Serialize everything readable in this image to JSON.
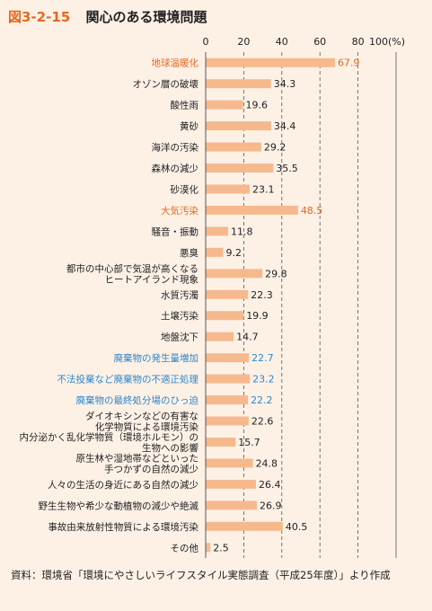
{
  "figure": {
    "number": "図3-2-15",
    "title": "関心のある環境問題"
  },
  "colors": {
    "bar": "#f6b98e",
    "accent_orange": "#e8671d",
    "accent_blue": "#2f86c9",
    "text": "#222222",
    "grid": "#555555",
    "background": "#fdf1e6"
  },
  "chart_data": {
    "type": "bar",
    "orientation": "horizontal",
    "title": "関心のある環境問題",
    "xlim": [
      0,
      100
    ],
    "x_ticks": [
      "0",
      "20",
      "40",
      "60",
      "80",
      "100(%)"
    ],
    "x_tick_values": [
      0,
      20,
      40,
      60,
      80,
      100
    ],
    "grid": true,
    "categories": [
      {
        "label": [
          "地球温暖化"
        ],
        "value": 67.9,
        "color": "orange"
      },
      {
        "label": [
          "オゾン層の破壊"
        ],
        "value": 34.3
      },
      {
        "label": [
          "酸性雨"
        ],
        "value": 19.6
      },
      {
        "label": [
          "黄砂"
        ],
        "value": 34.4
      },
      {
        "label": [
          "海洋の汚染"
        ],
        "value": 29.2
      },
      {
        "label": [
          "森林の減少"
        ],
        "value": 35.5
      },
      {
        "label": [
          "砂漠化"
        ],
        "value": 23.1
      },
      {
        "label": [
          "大気汚染"
        ],
        "value": 48.5,
        "color": "orange"
      },
      {
        "label": [
          "騒音・振動"
        ],
        "value": 11.8
      },
      {
        "label": [
          "悪臭"
        ],
        "value": 9.2
      },
      {
        "label": [
          "都市の中心部で気温が高くなる",
          "ヒートアイランド現象"
        ],
        "value": 29.8
      },
      {
        "label": [
          "水質汚濁"
        ],
        "value": 22.3
      },
      {
        "label": [
          "土壌汚染"
        ],
        "value": 19.9
      },
      {
        "label": [
          "地盤沈下"
        ],
        "value": 14.7
      },
      {
        "label": [
          "廃棄物の発生量増加"
        ],
        "value": 22.7,
        "color": "blue"
      },
      {
        "label": [
          "不法投棄など廃棄物の不適正処理"
        ],
        "value": 23.2,
        "color": "blue"
      },
      {
        "label": [
          "廃棄物の最終処分場のひっ迫"
        ],
        "value": 22.2,
        "color": "blue"
      },
      {
        "label": [
          "ダイオキシンなどの有害な",
          "化学物質による環境汚染"
        ],
        "value": 22.6
      },
      {
        "label": [
          "内分泌かく乱化学物質（環境ホルモン）の",
          "生物への影響"
        ],
        "value": 15.7
      },
      {
        "label": [
          "原生林や湿地帯などといった",
          "手つかずの自然の減少"
        ],
        "value": 24.8
      },
      {
        "label": [
          "人々の生活の身近にある自然の減少"
        ],
        "value": 26.4
      },
      {
        "label": [
          "野生生物や希少な動植物の減少や絶滅"
        ],
        "value": 26.9
      },
      {
        "label": [
          "事故由来放射性物質による環境汚染"
        ],
        "value": 40.5
      },
      {
        "label": [
          "その他"
        ],
        "value": 2.5
      }
    ]
  },
  "footer": {
    "source_label": "資料：",
    "source_text": "環境省「環境にやさしいライフスタイル実態調査（平成25年度）」より作成"
  }
}
